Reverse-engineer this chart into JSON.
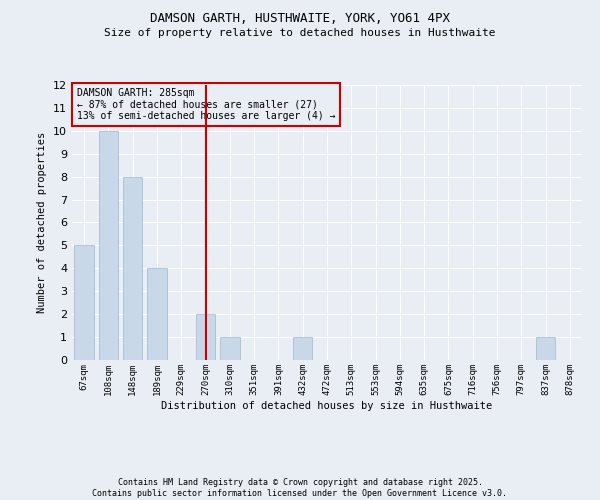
{
  "title1": "DAMSON GARTH, HUSTHWAITE, YORK, YO61 4PX",
  "title2": "Size of property relative to detached houses in Husthwaite",
  "xlabel": "Distribution of detached houses by size in Husthwaite",
  "ylabel": "Number of detached properties",
  "categories": [
    "67sqm",
    "108sqm",
    "148sqm",
    "189sqm",
    "229sqm",
    "270sqm",
    "310sqm",
    "351sqm",
    "391sqm",
    "432sqm",
    "472sqm",
    "513sqm",
    "553sqm",
    "594sqm",
    "635sqm",
    "675sqm",
    "716sqm",
    "756sqm",
    "797sqm",
    "837sqm",
    "878sqm"
  ],
  "values": [
    5,
    10,
    8,
    4,
    0,
    2,
    1,
    0,
    0,
    1,
    0,
    0,
    0,
    0,
    0,
    0,
    0,
    0,
    0,
    1,
    0
  ],
  "bar_color": "#c8d8e8",
  "bar_edgecolor": "#a0b8d0",
  "reference_line_index": 5,
  "reference_line_color": "#cc0000",
  "annotation_text": "DAMSON GARTH: 285sqm\n← 87% of detached houses are smaller (27)\n13% of semi-detached houses are larger (4) →",
  "annotation_box_color": "#cc0000",
  "ylim": [
    0,
    12
  ],
  "yticks": [
    0,
    1,
    2,
    3,
    4,
    5,
    6,
    7,
    8,
    9,
    10,
    11,
    12
  ],
  "bg_color": "#e8eef4",
  "grid_color": "#ffffff",
  "footer": "Contains HM Land Registry data © Crown copyright and database right 2025.\nContains public sector information licensed under the Open Government Licence v3.0."
}
